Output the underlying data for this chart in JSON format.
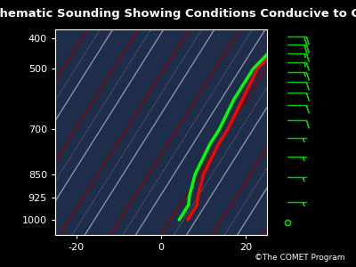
{
  "title": "Schematic Sounding Showing Conditions Conducive to CSI",
  "title_fontsize": 9.5,
  "title_color": "white",
  "background_color": "#000000",
  "plot_bg_color": "#1e2d4a",
  "xlim": [
    -25,
    25
  ],
  "ylim": [
    1050,
    370
  ],
  "xlabel_ticks": [
    -20,
    0,
    20
  ],
  "ylabel_ticks": [
    400,
    500,
    700,
    850,
    925,
    1000
  ],
  "tick_label_color": "white",
  "tick_fontsize": 8,
  "copyright": "©The COMET Program",
  "skew_slope": 0.045,
  "temp_profile": {
    "temps": [
      4,
      4,
      3,
      1,
      0,
      0,
      -1,
      -2,
      0,
      3
    ],
    "pressures": [
      1000,
      950,
      925,
      850,
      750,
      700,
      600,
      500,
      420,
      390
    ],
    "color": "#ff0000",
    "linewidth": 2.5
  },
  "dewpoint_profile": {
    "temps": [
      2,
      2,
      1,
      -1,
      -2,
      -2,
      -3,
      -3,
      -1,
      1
    ],
    "pressures": [
      1000,
      950,
      925,
      850,
      750,
      700,
      600,
      500,
      420,
      390
    ],
    "color": "#00ff00",
    "linewidth": 2.5
  },
  "diagonal_lines_red": {
    "color": "#880000",
    "linewidth": 1.0,
    "alpha": 1.0,
    "offsets": [
      -48,
      -36,
      -24,
      -12,
      0,
      12,
      24,
      36,
      48,
      60
    ]
  },
  "diagonal_lines_white": {
    "color": "#aaaaaa",
    "linewidth": 1.0,
    "alpha": 0.8,
    "offsets": [
      -42,
      -30,
      -18,
      -6,
      6,
      18,
      30,
      42,
      54
    ]
  },
  "dotted_lines_white": {
    "color": "#aaaaaa",
    "linewidth": 0.7,
    "alpha": 0.7,
    "linestyle": "dotted",
    "offsets": [
      -45,
      -33,
      -21,
      -9,
      3,
      15,
      27,
      39,
      51
    ]
  },
  "wind_barbs": {
    "pressures": [
      395,
      420,
      450,
      480,
      510,
      545,
      580,
      620,
      670,
      730,
      790,
      860,
      940,
      1010
    ],
    "u_speeds": [
      20,
      18,
      17,
      15,
      14,
      12,
      11,
      10,
      8,
      7,
      6,
      5,
      3,
      2
    ],
    "v_speeds": [
      0,
      0,
      0,
      0,
      0,
      0,
      0,
      0,
      0,
      0,
      0,
      0,
      0,
      0
    ],
    "color": "#00cc00"
  }
}
